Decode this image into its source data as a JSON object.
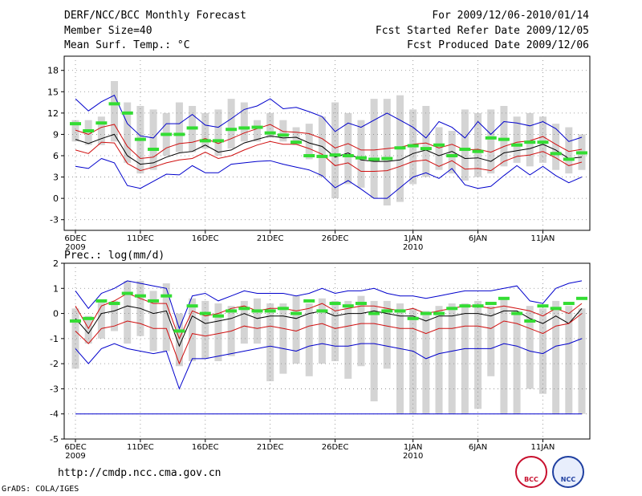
{
  "header": {
    "title": "DERF/NCC/BCC Monthly Forecast",
    "member_size": "Member Size=40",
    "variable": "Mean Surf. Temp.: °C",
    "for_period": "For 2009/12/06-2010/01/14",
    "fcst_started": "Fcst Started Refer Date 2009/12/05",
    "fcst_produced": "Fcst Produced Date 2009/12/06"
  },
  "footer": {
    "url": "http://cmdp.ncc.cma.gov.cn",
    "grads": "GrADS: COLA/IGES",
    "logo_bcc": "BCC",
    "logo_ncc": "NCC"
  },
  "colors": {
    "mean": "#000000",
    "inner_band": "#d01010",
    "outer_band": "#0000cc",
    "observed": "#33dd33",
    "spread_box": "#d4d4d4",
    "grid": "#888888"
  },
  "chart_data": [
    {
      "type": "line",
      "title": "Mean Surf. Temp.: °C",
      "x": [
        1,
        2,
        3,
        4,
        5,
        6,
        7,
        8,
        9,
        10,
        11,
        12,
        13,
        14,
        15,
        16,
        17,
        18,
        19,
        20,
        21,
        22,
        23,
        24,
        25,
        26,
        27,
        28,
        29,
        30,
        31,
        32,
        33,
        34,
        35,
        36,
        37,
        38,
        39,
        40
      ],
      "x_tick_labels": [
        {
          "x": 1,
          "label": "6DEC",
          "sub": "2009"
        },
        {
          "x": 6,
          "label": "11DEC",
          "sub": ""
        },
        {
          "x": 11,
          "label": "16DEC",
          "sub": ""
        },
        {
          "x": 16,
          "label": "21DEC",
          "sub": ""
        },
        {
          "x": 21,
          "label": "26DEC",
          "sub": ""
        },
        {
          "x": 27,
          "label": "1JAN",
          "sub": "2010"
        },
        {
          "x": 32,
          "label": "6JAN",
          "sub": ""
        },
        {
          "x": 37,
          "label": "11JAN",
          "sub": ""
        }
      ],
      "ylim": [
        -4.5,
        20
      ],
      "y_ticks": [
        -3,
        0,
        3,
        6,
        9,
        12,
        15,
        18
      ],
      "series": [
        {
          "name": "mean",
          "values": [
            8.3,
            7.7,
            8.4,
            9.0,
            6.0,
            4.8,
            5.0,
            5.8,
            6.4,
            6.6,
            7.5,
            6.5,
            6.8,
            7.8,
            8.3,
            8.8,
            8.5,
            8.6,
            7.8,
            7.3,
            5.8,
            6.4,
            5.4,
            5.2,
            5.2,
            5.4,
            6.3,
            6.8,
            6.0,
            6.6,
            5.6,
            5.7,
            5.2,
            6.4,
            6.7,
            7.0,
            7.6,
            6.8,
            5.6,
            5.8
          ]
        },
        {
          "name": "upper_inner",
          "values": [
            9.6,
            9.0,
            10.0,
            10.4,
            7.3,
            5.6,
            5.8,
            7.1,
            7.7,
            7.9,
            8.4,
            7.7,
            8.4,
            9.2,
            9.8,
            10.4,
            9.4,
            9.3,
            9.1,
            8.4,
            7.1,
            7.7,
            6.8,
            6.8,
            7.0,
            7.2,
            7.6,
            7.8,
            7.1,
            7.6,
            6.8,
            6.9,
            6.5,
            7.3,
            7.9,
            8.1,
            8.7,
            7.6,
            6.6,
            6.9
          ]
        },
        {
          "name": "lower_inner",
          "values": [
            6.8,
            6.3,
            7.9,
            7.8,
            4.9,
            3.9,
            4.4,
            5.0,
            5.4,
            5.6,
            6.5,
            5.6,
            6.0,
            6.8,
            7.5,
            8.0,
            7.6,
            7.6,
            7.0,
            6.2,
            4.6,
            5.0,
            3.8,
            3.8,
            3.9,
            4.5,
            5.2,
            5.4,
            4.5,
            5.3,
            4.1,
            4.2,
            3.9,
            5.2,
            5.9,
            6.1,
            6.6,
            5.7,
            4.6,
            5.1
          ]
        },
        {
          "name": "upper_outer",
          "values": [
            14.0,
            12.3,
            13.6,
            14.5,
            10.5,
            8.8,
            8.5,
            10.5,
            10.5,
            11.8,
            10.3,
            10.0,
            11.2,
            12.5,
            13.0,
            14.0,
            12.6,
            12.8,
            12.2,
            11.5,
            9.4,
            10.6,
            10.0,
            11.0,
            12.0,
            11.0,
            10.0,
            8.5,
            10.8,
            10.0,
            8.5,
            10.8,
            9.0,
            10.8,
            10.6,
            10.2,
            10.8,
            9.8,
            8.0,
            8.6
          ]
        },
        {
          "name": "lower_outer",
          "values": [
            4.5,
            4.2,
            5.6,
            5.0,
            1.8,
            1.4,
            2.4,
            3.4,
            3.3,
            4.6,
            3.6,
            3.6,
            4.8,
            5.0,
            5.2,
            5.3,
            4.8,
            4.4,
            4.0,
            3.2,
            1.5,
            2.5,
            1.3,
            0.0,
            0.0,
            1.5,
            3.0,
            3.6,
            2.8,
            4.2,
            1.9,
            1.4,
            1.7,
            3.2,
            4.6,
            3.3,
            4.5,
            3.2,
            2.2,
            3.0
          ]
        },
        {
          "name": "observed",
          "values": [
            10.5,
            9.5,
            10.6,
            13.3,
            12.0,
            8.3,
            6.9,
            9.0,
            9.0,
            9.9,
            8.1,
            8.1,
            9.7,
            9.9,
            10.0,
            9.2,
            8.9,
            7.9,
            6.0,
            5.9,
            6.1,
            6.0,
            5.7,
            5.5,
            5.6,
            7.1,
            7.4,
            7.0,
            7.5,
            6.0,
            6.9,
            6.6,
            8.5,
            8.3,
            7.5,
            7.9,
            7.9,
            6.3,
            5.5,
            6.4
          ]
        }
      ],
      "spread_boxes": [
        [
          8.0,
          11.0
        ],
        [
          7.5,
          11.0
        ],
        [
          7.5,
          11.5
        ],
        [
          8.0,
          16.5
        ],
        [
          5.0,
          13.5
        ],
        [
          3.5,
          13.0
        ],
        [
          4.0,
          12.5
        ],
        [
          6.0,
          12.0
        ],
        [
          6.5,
          13.5
        ],
        [
          6.5,
          13.0
        ],
        [
          7.0,
          12.0
        ],
        [
          6.0,
          12.5
        ],
        [
          7.0,
          14.0
        ],
        [
          8.0,
          13.5
        ],
        [
          8.0,
          11.0
        ],
        [
          8.5,
          12.0
        ],
        [
          8.0,
          11.0
        ],
        [
          7.5,
          10.0
        ],
        [
          5.5,
          10.5
        ],
        [
          3.0,
          11.5
        ],
        [
          0.0,
          13.5
        ],
        [
          2.0,
          12.0
        ],
        [
          1.5,
          11.0
        ],
        [
          0.0,
          14.0
        ],
        [
          -1.0,
          14.0
        ],
        [
          -0.5,
          14.5
        ],
        [
          2.0,
          12.5
        ],
        [
          3.0,
          13.0
        ],
        [
          4.0,
          10.0
        ],
        [
          3.5,
          9.5
        ],
        [
          2.5,
          12.5
        ],
        [
          3.0,
          12.0
        ],
        [
          3.5,
          12.5
        ],
        [
          4.5,
          13.0
        ],
        [
          5.0,
          11.5
        ],
        [
          4.5,
          12.0
        ],
        [
          5.0,
          11.5
        ],
        [
          4.0,
          10.5
        ],
        [
          3.5,
          10.0
        ],
        [
          4.0,
          9.0
        ]
      ]
    },
    {
      "type": "line",
      "title": "Prec.: log(mm/d)",
      "x": [
        1,
        2,
        3,
        4,
        5,
        6,
        7,
        8,
        9,
        10,
        11,
        12,
        13,
        14,
        15,
        16,
        17,
        18,
        19,
        20,
        21,
        22,
        23,
        24,
        25,
        26,
        27,
        28,
        29,
        30,
        31,
        32,
        33,
        34,
        35,
        36,
        37,
        38,
        39,
        40
      ],
      "x_tick_labels": [
        {
          "x": 1,
          "label": "6DEC",
          "sub": "2009"
        },
        {
          "x": 6,
          "label": "11DEC",
          "sub": ""
        },
        {
          "x": 11,
          "label": "16DEC",
          "sub": ""
        },
        {
          "x": 16,
          "label": "21DEC",
          "sub": ""
        },
        {
          "x": 21,
          "label": "26DEC",
          "sub": ""
        },
        {
          "x": 27,
          "label": "1JAN",
          "sub": "2010"
        },
        {
          "x": 32,
          "label": "6JAN",
          "sub": ""
        },
        {
          "x": 37,
          "label": "11JAN",
          "sub": ""
        }
      ],
      "ylim": [
        -5,
        2
      ],
      "y_ticks": [
        -5,
        -4,
        -3,
        -2,
        -1,
        0,
        1,
        2
      ],
      "series": [
        {
          "name": "mean",
          "values": [
            -0.2,
            -0.8,
            0.0,
            0.1,
            0.3,
            0.2,
            0.0,
            0.1,
            -1.3,
            -0.1,
            -0.4,
            -0.3,
            -0.2,
            0.0,
            -0.2,
            -0.1,
            -0.1,
            -0.2,
            0.0,
            0.1,
            -0.1,
            0.0,
            0.0,
            0.1,
            0.0,
            -0.1,
            -0.1,
            -0.3,
            -0.1,
            -0.1,
            0.0,
            0.0,
            -0.1,
            0.1,
            0.1,
            -0.2,
            -0.4,
            -0.1,
            -0.4,
            0.2
          ]
        },
        {
          "name": "upper_inner",
          "values": [
            0.3,
            -0.6,
            0.3,
            0.5,
            0.8,
            0.6,
            0.4,
            0.4,
            -1.0,
            0.1,
            -0.1,
            0.0,
            0.2,
            0.3,
            0.1,
            0.2,
            0.2,
            0.1,
            0.2,
            0.4,
            0.1,
            0.2,
            0.3,
            0.3,
            0.2,
            0.1,
            0.2,
            0.0,
            0.1,
            0.2,
            0.3,
            0.3,
            0.2,
            0.3,
            0.2,
            0.1,
            -0.1,
            0.2,
            0.0,
            0.4
          ]
        },
        {
          "name": "lower_inner",
          "values": [
            -0.7,
            -1.2,
            -0.6,
            -0.5,
            -0.3,
            -0.4,
            -0.6,
            -0.6,
            -2.0,
            -0.8,
            -0.9,
            -0.8,
            -0.7,
            -0.5,
            -0.6,
            -0.5,
            -0.6,
            -0.7,
            -0.5,
            -0.4,
            -0.6,
            -0.5,
            -0.4,
            -0.4,
            -0.5,
            -0.6,
            -0.6,
            -0.8,
            -0.6,
            -0.6,
            -0.5,
            -0.5,
            -0.6,
            -0.3,
            -0.4,
            -0.6,
            -0.8,
            -0.5,
            -0.4,
            0.0
          ]
        },
        {
          "name": "upper_outer",
          "values": [
            0.9,
            0.2,
            0.8,
            1.0,
            1.3,
            1.2,
            1.1,
            1.0,
            -0.6,
            0.7,
            0.8,
            0.5,
            0.7,
            0.9,
            0.8,
            0.8,
            0.8,
            0.7,
            0.8,
            1.0,
            0.8,
            0.9,
            0.9,
            1.0,
            0.8,
            0.7,
            0.7,
            0.6,
            0.7,
            0.8,
            0.9,
            0.9,
            0.9,
            1.0,
            1.1,
            0.5,
            0.4,
            1.0,
            1.2,
            1.3
          ]
        },
        {
          "name": "lower_outer",
          "values": [
            -1.4,
            -2.0,
            -1.4,
            -1.2,
            -1.4,
            -1.5,
            -1.6,
            -1.5,
            -3.0,
            -1.8,
            -1.8,
            -1.7,
            -1.6,
            -1.5,
            -1.4,
            -1.3,
            -1.4,
            -1.5,
            -1.3,
            -1.2,
            -1.3,
            -1.3,
            -1.2,
            -1.2,
            -1.3,
            -1.4,
            -1.5,
            -1.8,
            -1.6,
            -1.5,
            -1.4,
            -1.4,
            -1.4,
            -1.2,
            -1.3,
            -1.5,
            -1.6,
            -1.3,
            -1.2,
            -1.0
          ]
        },
        {
          "name": "observed",
          "values": [
            -0.3,
            -0.2,
            0.5,
            0.4,
            0.8,
            0.7,
            0.5,
            0.7,
            -0.7,
            0.3,
            0.0,
            -0.1,
            0.1,
            0.2,
            0.1,
            0.1,
            0.2,
            0.0,
            0.5,
            0.1,
            0.4,
            0.3,
            0.4,
            0.0,
            0.1,
            0.1,
            -0.2,
            0.0,
            0.0,
            0.2,
            0.3,
            0.3,
            0.4,
            0.6,
            0.0,
            -0.3,
            0.3,
            0.2,
            0.4,
            0.6
          ]
        }
      ],
      "spread_boxes": [
        [
          -2.2,
          0.2
        ],
        [
          -1.2,
          -0.1
        ],
        [
          -1.0,
          0.5
        ],
        [
          -0.7,
          0.5
        ],
        [
          -1.2,
          1.3
        ],
        [
          -0.9,
          1.3
        ],
        [
          -1.5,
          0.9
        ],
        [
          -1.5,
          1.2
        ],
        [
          -2.1,
          0.0
        ],
        [
          -1.9,
          0.6
        ],
        [
          -1.8,
          0.5
        ],
        [
          -1.9,
          0.4
        ],
        [
          -1.7,
          0.3
        ],
        [
          -1.2,
          0.5
        ],
        [
          -1.2,
          0.6
        ],
        [
          -2.7,
          0.4
        ],
        [
          -2.4,
          0.4
        ],
        [
          -2.0,
          0.7
        ],
        [
          -2.5,
          0.4
        ],
        [
          -2.0,
          0.6
        ],
        [
          -1.9,
          0.5
        ],
        [
          -2.6,
          0.5
        ],
        [
          -2.1,
          0.7
        ],
        [
          -3.5,
          0.5
        ],
        [
          -2.2,
          0.5
        ],
        [
          -4.0,
          0.4
        ],
        [
          -4.0,
          0.2
        ],
        [
          -4.0,
          0.1
        ],
        [
          -4.0,
          0.3
        ],
        [
          -4.0,
          0.4
        ],
        [
          -4.0,
          0.4
        ],
        [
          -3.8,
          0.5
        ],
        [
          -2.5,
          0.3
        ],
        [
          -4.0,
          0.6
        ],
        [
          -4.0,
          0.1
        ],
        [
          -3.0,
          0.3
        ],
        [
          -3.2,
          0.2
        ],
        [
          -4.0,
          0.5
        ],
        [
          -4.0,
          0.3
        ],
        [
          -4.0,
          0.2
        ]
      ],
      "floor_line": -4
    }
  ]
}
